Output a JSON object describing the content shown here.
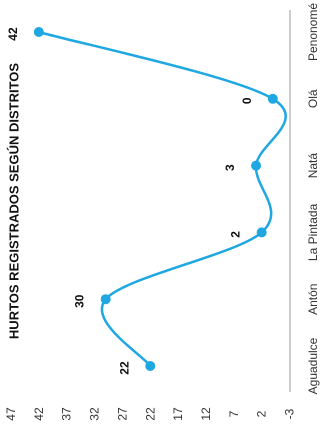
{
  "chart_data": {
    "type": "line",
    "title": "HURTOS REGISTRADOS SEGÚN DISTRITOS",
    "orientation": "rotated-90-clockwise",
    "categories": [
      "Aguadulce",
      "Antón",
      "La Pintada",
      "Natá",
      "Olá",
      "Penonomé"
    ],
    "series": [
      {
        "values": [
          22,
          30,
          2,
          3,
          0,
          42
        ]
      }
    ],
    "data_labels": [
      "22",
      "30",
      "2",
      "3",
      "0",
      "42"
    ],
    "y_ticks": [
      -3,
      2,
      7,
      12,
      17,
      22,
      27,
      32,
      37,
      42,
      47
    ],
    "ylim": [
      -3,
      47
    ],
    "xlabel": "",
    "ylabel": "",
    "smooth": true,
    "grid": false,
    "colors": {
      "line": "#1ea7e1",
      "marker": "#1ea7e1",
      "axis": "#999999"
    }
  }
}
